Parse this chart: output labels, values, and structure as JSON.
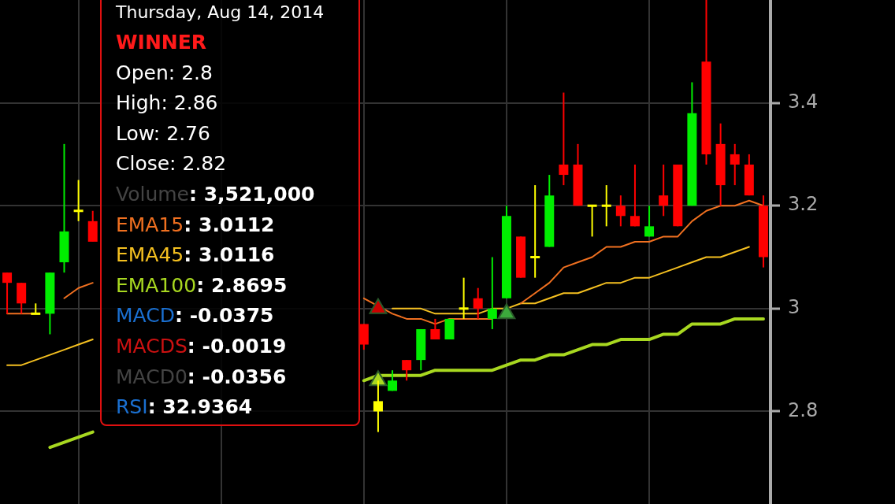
{
  "chart_data": {
    "type": "candlestick",
    "categories": [
      null,
      null,
      null,
      null,
      null,
      null,
      null,
      null,
      null,
      null,
      null,
      null,
      null,
      null,
      null,
      null,
      null,
      null,
      null,
      null,
      null,
      null,
      null,
      null,
      null,
      null,
      null,
      null,
      null,
      null,
      null,
      null,
      null,
      null,
      null,
      null,
      null,
      null,
      null,
      null,
      null,
      null,
      null,
      null,
      null,
      null,
      null,
      null,
      null,
      null,
      null,
      null,
      null,
      null
    ],
    "ohlc": [
      [
        3.07,
        3.07,
        2.99,
        3.05
      ],
      [
        3.05,
        3.05,
        2.99,
        3.01
      ],
      [
        2.99,
        3.01,
        2.99,
        2.99
      ],
      [
        2.99,
        3.07,
        2.95,
        3.07
      ],
      [
        3.09,
        3.32,
        3.07,
        3.15
      ],
      [
        3.19,
        3.25,
        3.17,
        3.19
      ],
      [
        3.17,
        3.19,
        3.13,
        3.13
      ],
      null,
      null,
      null,
      null,
      null,
      null,
      null,
      null,
      null,
      null,
      null,
      null,
      null,
      null,
      null,
      null,
      null,
      null,
      [
        2.97,
        2.97,
        2.92,
        2.93
      ],
      [
        2.8,
        2.86,
        2.76,
        2.82
      ],
      [
        2.84,
        2.88,
        2.84,
        2.86
      ],
      [
        2.9,
        2.9,
        2.86,
        2.88
      ],
      [
        2.9,
        2.96,
        2.88,
        2.96
      ],
      [
        2.96,
        2.98,
        2.94,
        2.94
      ],
      [
        2.94,
        2.98,
        2.94,
        2.98
      ],
      [
        3.0,
        3.06,
        2.98,
        3.0
      ],
      [
        3.02,
        3.04,
        2.98,
        3.0
      ],
      [
        2.98,
        3.1,
        2.96,
        3.0
      ],
      [
        3.02,
        3.2,
        3.02,
        3.18
      ],
      [
        3.14,
        3.14,
        3.06,
        3.06
      ],
      [
        3.1,
        3.24,
        3.06,
        3.1
      ],
      [
        3.12,
        3.26,
        3.12,
        3.22
      ],
      [
        3.28,
        3.42,
        3.24,
        3.26
      ],
      [
        3.28,
        3.32,
        3.2,
        3.2
      ],
      [
        3.2,
        3.2,
        3.14,
        3.2
      ],
      [
        3.2,
        3.24,
        3.16,
        3.2
      ],
      [
        3.2,
        3.22,
        3.16,
        3.18
      ],
      [
        3.18,
        3.28,
        3.16,
        3.16
      ],
      [
        3.14,
        3.2,
        3.14,
        3.16
      ],
      [
        3.22,
        3.28,
        3.18,
        3.2
      ],
      [
        3.28,
        3.28,
        3.16,
        3.16
      ],
      [
        3.2,
        3.44,
        3.2,
        3.38
      ],
      [
        3.48,
        3.6,
        3.28,
        3.3
      ],
      [
        3.32,
        3.36,
        3.2,
        3.24
      ],
      [
        3.3,
        3.32,
        3.24,
        3.28
      ],
      [
        3.28,
        3.3,
        3.22,
        3.22
      ],
      [
        3.2,
        3.22,
        3.08,
        3.1
      ]
    ],
    "colors": [
      "#ff0000",
      "#ff0000",
      "#ffff00",
      "#00ee00",
      "#00ee00",
      "#ffff00",
      "#ff0000",
      null,
      null,
      null,
      null,
      null,
      null,
      null,
      null,
      null,
      null,
      null,
      null,
      null,
      null,
      null,
      null,
      null,
      null,
      "#ff0000",
      "#ffff00",
      "#00ee00",
      "#ff0000",
      "#00ee00",
      "#ff0000",
      "#00ee00",
      "#ffff00",
      "#ff0000",
      "#00ee00",
      "#00ee00",
      "#ff0000",
      "#ffff00",
      "#00ee00",
      "#ff0000",
      "#ff0000",
      "#ffff00",
      "#ffff00",
      "#ff0000",
      "#ff0000",
      "#00ee00",
      "#ff0000",
      "#ff0000",
      "#00ee00",
      "#ff0000",
      "#ff0000",
      "#ff0000",
      "#ff0000",
      "#ff0000"
    ],
    "series": [
      {
        "type": "line",
        "color": "#f07020",
        "values": [
          2.99,
          2.99,
          2.99,
          null,
          3.02,
          3.04,
          3.05,
          null,
          null,
          null,
          null,
          null,
          null,
          null,
          null,
          null,
          null,
          null,
          null,
          null,
          null,
          null,
          null,
          null,
          null,
          3.02,
          3.005,
          2.99,
          2.98,
          2.98,
          2.97,
          2.98,
          2.98,
          2.98,
          2.98,
          null,
          3.01,
          3.03,
          3.05,
          3.08,
          3.09,
          3.1,
          3.12,
          3.12,
          3.13,
          3.13,
          3.14,
          3.14,
          3.17,
          3.19,
          3.2,
          3.2,
          3.21,
          3.2
        ]
      },
      {
        "type": "line",
        "color": "#f5c020",
        "values": [
          2.89,
          2.89,
          2.9,
          2.91,
          2.92,
          2.93,
          2.94,
          null,
          null,
          null,
          null,
          null,
          null,
          null,
          null,
          null,
          null,
          null,
          null,
          null,
          null,
          null,
          null,
          null,
          null,
          null,
          null,
          3.0,
          3.0,
          3.0,
          2.99,
          2.99,
          2.99,
          2.99,
          3.0,
          3.0,
          3.01,
          3.01,
          3.02,
          3.03,
          3.03,
          3.04,
          3.05,
          3.05,
          3.06,
          3.06,
          3.07,
          3.08,
          3.09,
          3.1,
          3.1,
          3.11,
          3.12,
          null
        ]
      },
      {
        "type": "line",
        "color": "#a8d820",
        "values": [
          null,
          null,
          null,
          2.73,
          2.74,
          2.75,
          2.76,
          null,
          null,
          null,
          null,
          null,
          null,
          null,
          null,
          null,
          null,
          null,
          null,
          null,
          null,
          null,
          null,
          null,
          null,
          2.86,
          2.87,
          2.87,
          2.87,
          2.87,
          2.88,
          2.88,
          2.88,
          2.88,
          2.88,
          2.89,
          2.9,
          2.9,
          2.91,
          2.91,
          2.92,
          2.93,
          2.93,
          2.94,
          2.94,
          2.94,
          2.95,
          2.95,
          2.97,
          2.97,
          2.97,
          2.98,
          2.98,
          2.98
        ]
      },
      {
        "type": "scatter",
        "marker": "triangle",
        "color": "#cc0000",
        "values": [
          null,
          null,
          null,
          null,
          null,
          null,
          null,
          null,
          null,
          null,
          null,
          null,
          null,
          null,
          null,
          null,
          null,
          null,
          null,
          null,
          null,
          null,
          null,
          null,
          null,
          null,
          3.0,
          null,
          null,
          null,
          null,
          null,
          null,
          null,
          null,
          null,
          null,
          null,
          null,
          null,
          null,
          null,
          null,
          null,
          null,
          null,
          null,
          null,
          null,
          null,
          null,
          null,
          null,
          null
        ]
      },
      {
        "type": "scatter",
        "marker": "triangle",
        "color": "#a8d820",
        "values": [
          null,
          null,
          null,
          null,
          null,
          null,
          null,
          null,
          null,
          null,
          null,
          null,
          null,
          null,
          null,
          null,
          null,
          null,
          null,
          null,
          null,
          null,
          null,
          null,
          null,
          null,
          2.86,
          null,
          null,
          null,
          null,
          null,
          null,
          null,
          null,
          null,
          null,
          null,
          null,
          null,
          null,
          null,
          null,
          null,
          null,
          null,
          null,
          null,
          null,
          null,
          null,
          null,
          null,
          null
        ]
      },
      {
        "type": "scatter",
        "marker": "triangle",
        "color": "#3caa3c",
        "values": [
          null,
          null,
          null,
          null,
          null,
          null,
          null,
          null,
          null,
          null,
          null,
          null,
          null,
          null,
          null,
          null,
          null,
          null,
          null,
          null,
          null,
          null,
          null,
          null,
          null,
          null,
          null,
          null,
          null,
          null,
          null,
          null,
          null,
          null,
          null,
          2.99,
          null,
          null,
          null,
          null,
          null,
          null,
          null,
          null,
          null,
          null,
          null,
          null,
          null,
          null,
          null,
          null,
          null,
          null
        ]
      }
    ],
    "ylim": [
      2.62,
      3.6
    ],
    "yticks": [
      2.8,
      3,
      3.2,
      3.4
    ],
    "grid": true,
    "tick_labels": "y",
    "annotations": [
      "Thursday, Aug 14, 2014",
      "WINNER",
      "Open: 2.8",
      "High: 2.86",
      "Low: 2.76",
      "Close: 2.82",
      "Volume: 3,521,000",
      "EMA15: 3.0112",
      "EMA45: 3.0116",
      "EMA100: 2.8695",
      "MACD: -0.0375",
      "MACDS: -0.0019",
      "MACD0: -0.0356",
      "RSI: 32.9364"
    ]
  }
}
